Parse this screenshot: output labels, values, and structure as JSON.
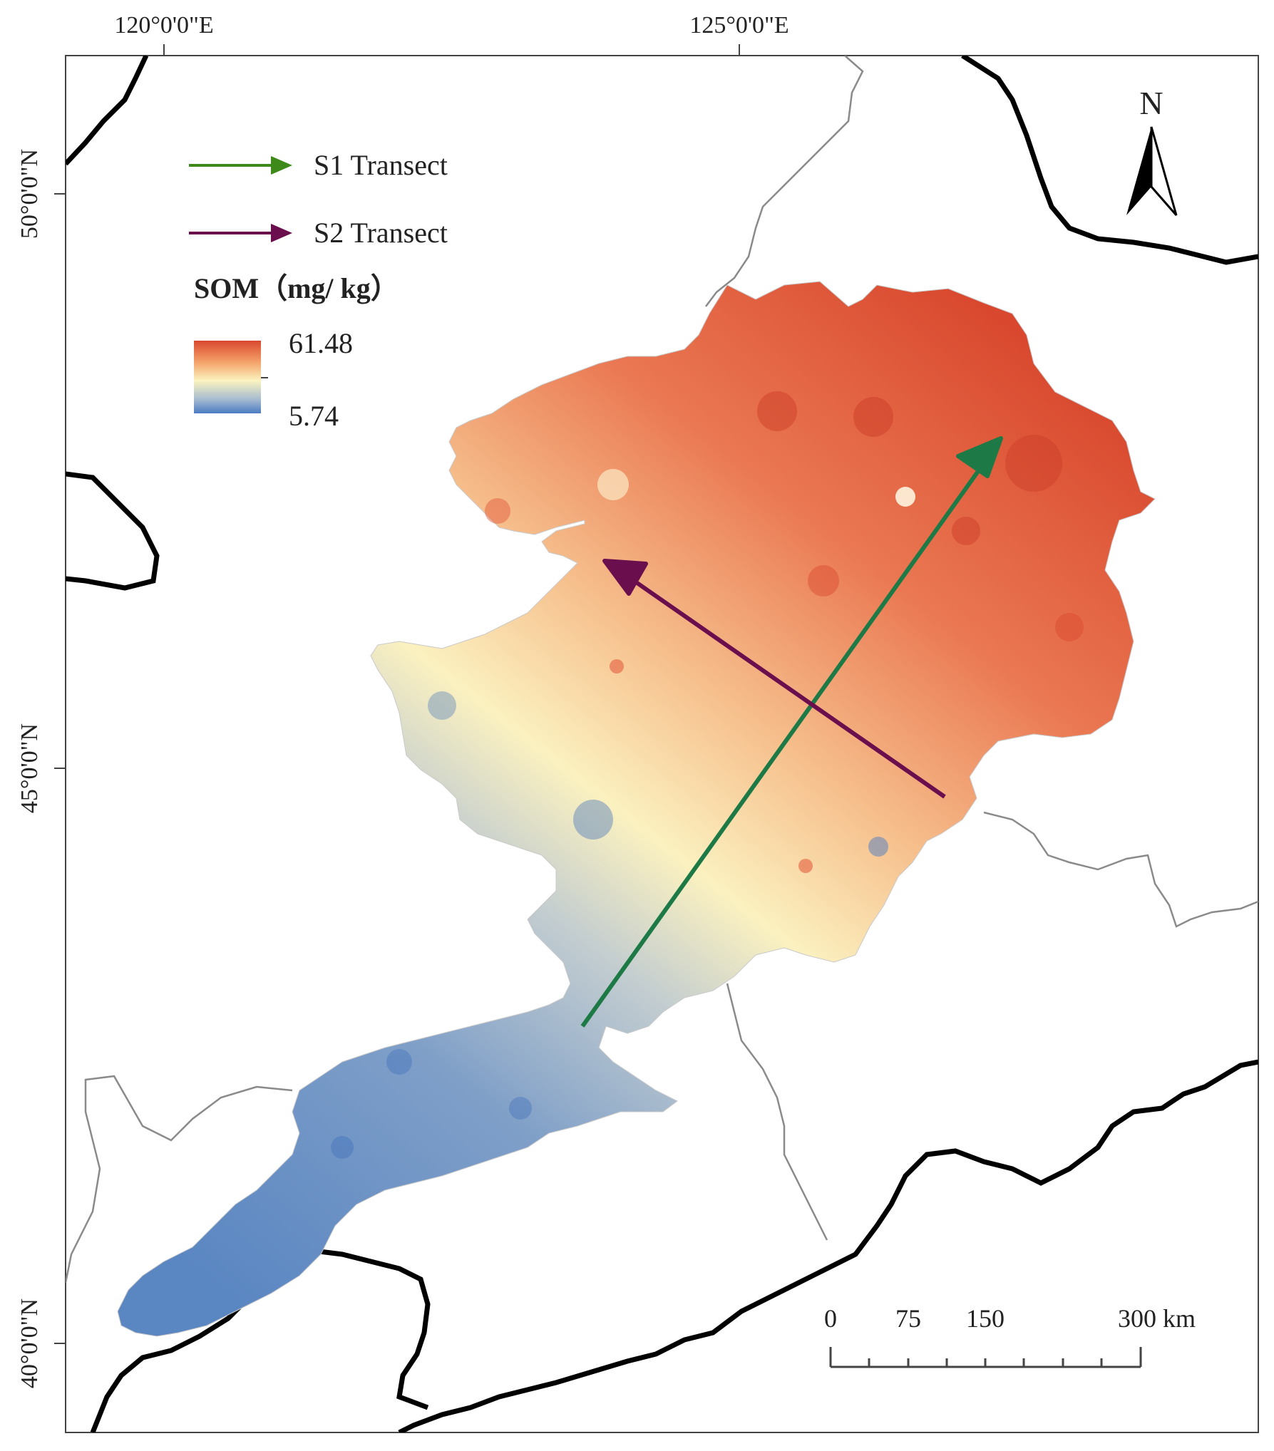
{
  "axes": {
    "lon_labels": [
      "120°0'0\"E",
      "125°0'0\"E"
    ],
    "lat_labels": [
      "50°0'0\"N",
      "45°0'0\"N",
      "40°0'0\"N"
    ]
  },
  "legend": {
    "s1_label": "S1 Transect",
    "s2_label": "S2 Transect",
    "s1_color": "#1d7a46",
    "s2_color": "#6b0e4e",
    "som_title": "SOM（mg/ kg）",
    "som_max": "61.48",
    "som_min": "5.74",
    "ramp_colors": [
      "#d9482e",
      "#f4a36a",
      "#fbf3bf",
      "#a9bdd0",
      "#4b7cc3"
    ]
  },
  "north_arrow": {
    "label": "N"
  },
  "scale_bar": {
    "ticks": [
      "0",
      "75",
      "150",
      "300 km"
    ]
  }
}
